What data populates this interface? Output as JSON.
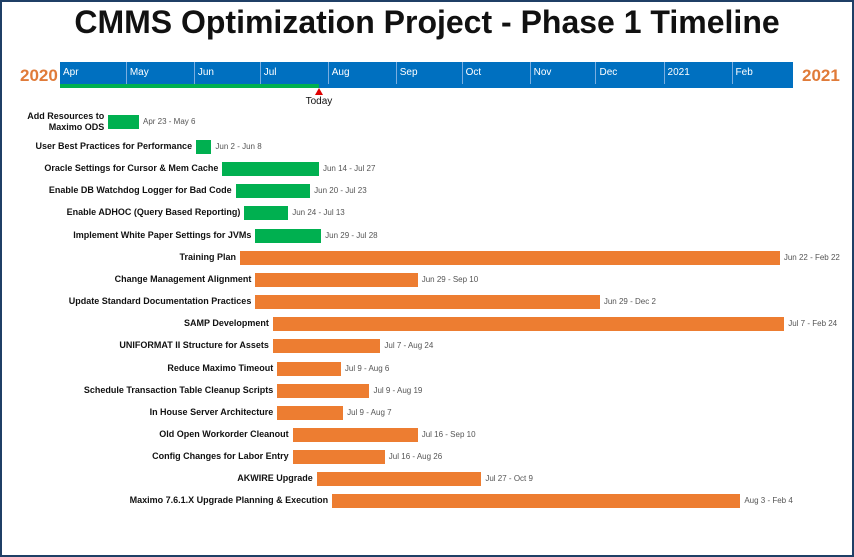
{
  "chart_data": {
    "type": "gantt",
    "title": "CMMS Optimization Project - Phase 1 Timeline",
    "start_year_label": "2020",
    "end_year_label": "2021",
    "axis_start": "2020-04-01",
    "axis_end": "2021-03-01",
    "months": [
      {
        "label": "Apr",
        "date": "2020-04-01"
      },
      {
        "label": "May",
        "date": "2020-05-01"
      },
      {
        "label": "Jun",
        "date": "2020-06-01"
      },
      {
        "label": "Jul",
        "date": "2020-07-01"
      },
      {
        "label": "Aug",
        "date": "2020-08-01"
      },
      {
        "label": "Sep",
        "date": "2020-09-01"
      },
      {
        "label": "Oct",
        "date": "2020-10-01"
      },
      {
        "label": "Nov",
        "date": "2020-11-01"
      },
      {
        "label": "Dec",
        "date": "2020-12-01"
      },
      {
        "label": "2021",
        "date": "2021-01-01"
      },
      {
        "label": "Feb",
        "date": "2021-02-01"
      }
    ],
    "today": {
      "label": "Today",
      "date": "2020-07-28"
    },
    "colors": {
      "band": "#0070c0",
      "complete": "#00b050",
      "planned": "#ed7d31",
      "today": "#e00000",
      "year": "#e07b39"
    },
    "tasks": [
      {
        "name": "Add Resources to Maximo ODS",
        "start": "2020-04-23",
        "end": "2020-05-06",
        "dates": "Apr 23 - May 6",
        "status": "complete"
      },
      {
        "name": "User Best Practices for Performance",
        "start": "2020-06-02",
        "end": "2020-06-08",
        "dates": "Jun 2 - Jun 8",
        "status": "complete"
      },
      {
        "name": "Oracle Settings for Cursor & Mem Cache",
        "start": "2020-06-14",
        "end": "2020-07-27",
        "dates": "Jun 14 - Jul 27",
        "status": "complete"
      },
      {
        "name": "Enable DB Watchdog Logger for Bad Code",
        "start": "2020-06-20",
        "end": "2020-07-23",
        "dates": "Jun 20 - Jul 23",
        "status": "complete"
      },
      {
        "name": "Enable ADHOC (Query Based Reporting)",
        "start": "2020-06-24",
        "end": "2020-07-13",
        "dates": "Jun 24 - Jul 13",
        "status": "complete"
      },
      {
        "name": "Implement White Paper Settings for JVMs",
        "start": "2020-06-29",
        "end": "2020-07-28",
        "dates": "Jun 29 - Jul 28",
        "status": "complete"
      },
      {
        "name": "Training Plan",
        "start": "2020-06-22",
        "end": "2021-02-22",
        "dates": "Jun 22 - Feb 22",
        "status": "planned"
      },
      {
        "name": "Change Management Alignment",
        "start": "2020-06-29",
        "end": "2020-09-10",
        "dates": "Jun 29 - Sep 10",
        "status": "planned"
      },
      {
        "name": "Update Standard Documentation Practices",
        "start": "2020-06-29",
        "end": "2020-12-02",
        "dates": "Jun 29 - Dec 2",
        "status": "planned"
      },
      {
        "name": "SAMP Development",
        "start": "2020-07-07",
        "end": "2021-02-24",
        "dates": "Jul 7 - Feb 24",
        "status": "planned"
      },
      {
        "name": "UNIFORMAT II Structure for Assets",
        "start": "2020-07-07",
        "end": "2020-08-24",
        "dates": "Jul 7 - Aug 24",
        "status": "planned"
      },
      {
        "name": "Reduce Maximo Timeout",
        "start": "2020-07-09",
        "end": "2020-08-06",
        "dates": "Jul 9 - Aug 6",
        "status": "planned"
      },
      {
        "name": "Schedule Transaction Table Cleanup Scripts",
        "start": "2020-07-09",
        "end": "2020-08-19",
        "dates": "Jul 9 - Aug 19",
        "status": "planned"
      },
      {
        "name": "In House Server Architecture",
        "start": "2020-07-09",
        "end": "2020-08-07",
        "dates": "Jul 9 - Aug 7",
        "status": "planned"
      },
      {
        "name": "Old Open Workorder Cleanout",
        "start": "2020-07-16",
        "end": "2020-09-10",
        "dates": "Jul 16 - Sep 10",
        "status": "planned"
      },
      {
        "name": "Config Changes for Labor Entry",
        "start": "2020-07-16",
        "end": "2020-08-26",
        "dates": "Jul 16 - Aug 26",
        "status": "planned"
      },
      {
        "name": "AKWIRE Upgrade",
        "start": "2020-07-27",
        "end": "2020-10-09",
        "dates": "Jul 27 - Oct 9",
        "status": "planned"
      },
      {
        "name": "Maximo 7.6.1.X Upgrade Planning & Execution",
        "start": "2020-08-03",
        "end": "2021-02-04",
        "dates": "Aug 3 - Feb 4",
        "status": "planned"
      }
    ]
  }
}
